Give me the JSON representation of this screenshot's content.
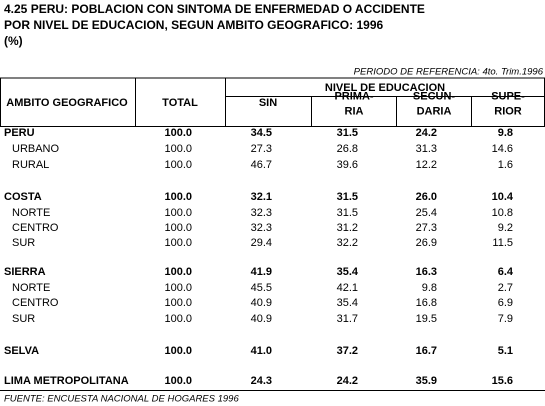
{
  "header": {
    "title_lines": [
      "4.25  PERU:  POBLACION CON SINTOMA DE ENFERMEDAD O ACCIDENTE",
      "POR NIVEL DE EDUCACION, SEGUN AMBITO GEOGRAFICO: 1996",
      "(%)"
    ],
    "reference": "PERIODO DE REFERENCIA: 4to. Trim.1996"
  },
  "table": {
    "columns": {
      "ambito": "AMBITO GEOGRAFICO",
      "total": "TOTAL",
      "group": "NIVEL DE EDUCACION",
      "levels": [
        [
          "SIN"
        ],
        [
          "PRIMA-",
          "RIA"
        ],
        [
          "SECUN-",
          "DARIA"
        ],
        [
          "SUPE-",
          "RIOR"
        ]
      ]
    },
    "rows": [
      [
        "PERU",
        "100.0",
        "34.5",
        "31.5",
        "24.2",
        "9.8"
      ],
      [
        "URBANO",
        "100.0",
        "27.3",
        "26.8",
        "31.3",
        "14.6"
      ],
      [
        "RURAL",
        "100.0",
        "46.7",
        "39.6",
        "12.2",
        "1.6"
      ],
      [
        "COSTA",
        "100.0",
        "32.1",
        "31.5",
        "26.0",
        "10.4"
      ],
      [
        "NORTE",
        "100.0",
        "32.3",
        "31.5",
        "25.4",
        "10.8"
      ],
      [
        "CENTRO",
        "100.0",
        "32.3",
        "31.2",
        "27.3",
        "9.2"
      ],
      [
        "SUR",
        "100.0",
        "29.4",
        "32.2",
        "26.9",
        "11.5"
      ],
      [
        "SIERRA",
        "100.0",
        "41.9",
        "35.4",
        "16.3",
        "6.4"
      ],
      [
        "NORTE",
        "100.0",
        "45.5",
        "42.1",
        "9.8",
        "2.7"
      ],
      [
        "CENTRO",
        "100.0",
        "40.9",
        "35.4",
        "16.8",
        "6.9"
      ],
      [
        "SUR",
        "100.0",
        "40.9",
        "31.7",
        "19.5",
        "7.9"
      ],
      [
        "SELVA",
        "100.0",
        "41.0",
        "37.2",
        "16.7",
        "5.1"
      ],
      [
        "LIMA METROPOLITANA",
        "100.0",
        "24.3",
        "24.2",
        "35.9",
        "15.6"
      ]
    ]
  },
  "footer": "FUENTE: ENCUESTA NACIONAL DE HOGARES 1996"
}
